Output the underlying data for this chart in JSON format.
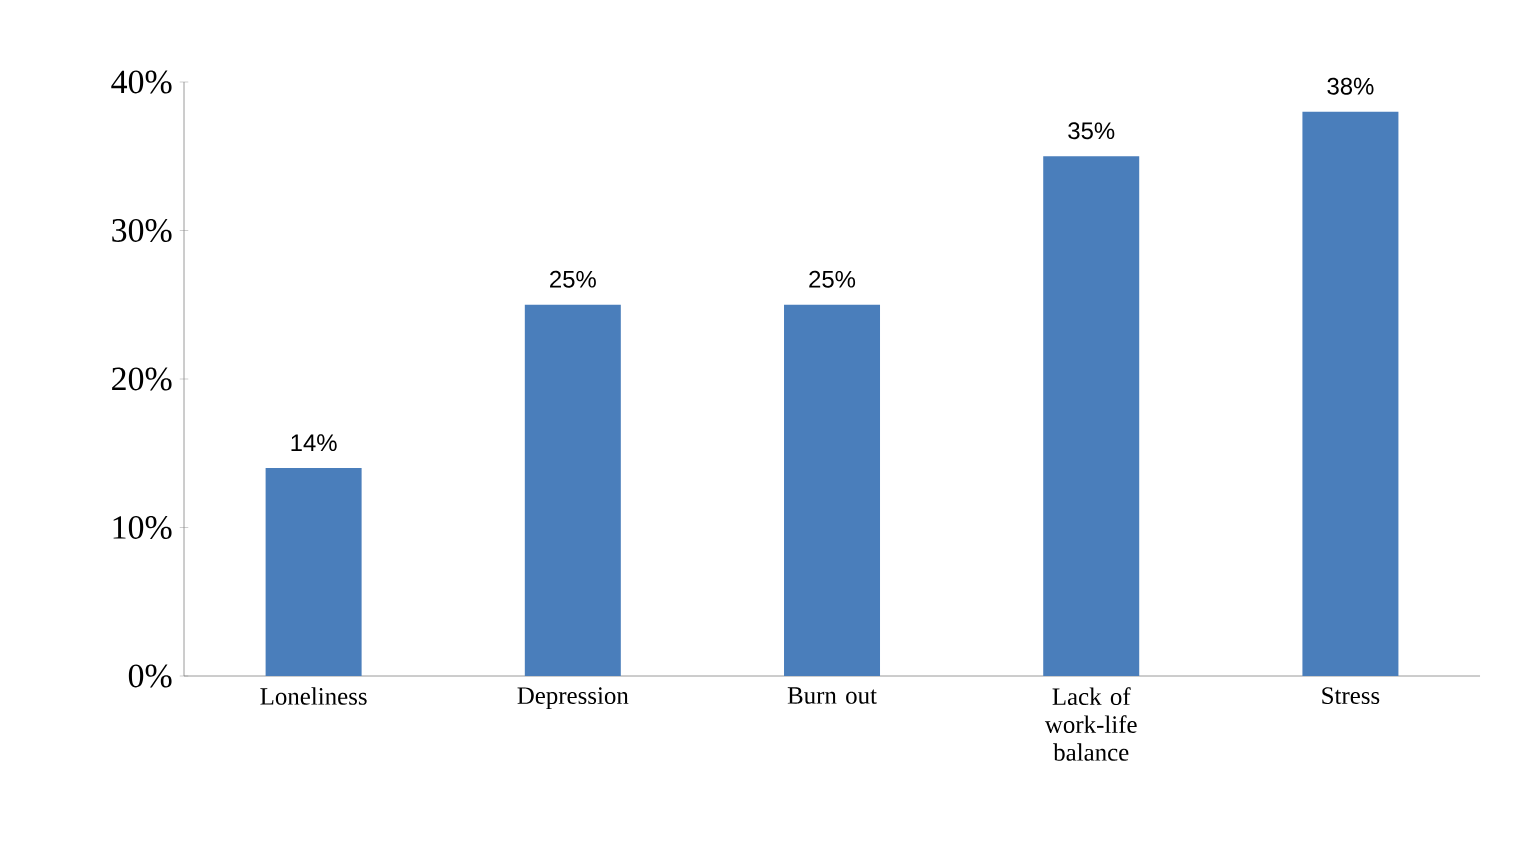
{
  "chart_data": {
    "type": "bar",
    "categories": [
      "Loneliness",
      "Depression",
      "Burn out",
      "Lack of work-life balance",
      "Stress"
    ],
    "values": [
      14,
      25,
      25,
      35,
      38
    ],
    "value_labels": [
      "14%",
      "25%",
      "25%",
      "35%",
      "38%"
    ],
    "color": "#4a7ebb",
    "ylim": [
      0,
      40
    ],
    "yticks": [
      {
        "value": 0,
        "label": "0%"
      },
      {
        "value": 10,
        "label": "10%"
      },
      {
        "value": 20,
        "label": "20%"
      },
      {
        "value": 30,
        "label": "30%"
      },
      {
        "value": 40,
        "label": "40%"
      }
    ],
    "grid": false
  }
}
